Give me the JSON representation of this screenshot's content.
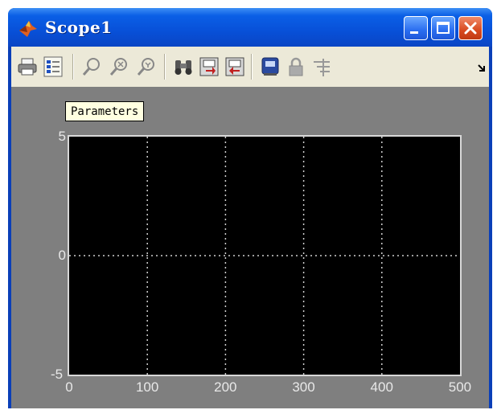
{
  "window": {
    "title": "Scope1"
  },
  "toolbar": {
    "icons": [
      "print-icon",
      "parameters-icon",
      "zoom-icon",
      "zoom-x-icon",
      "zoom-y-icon",
      "autoscale-binoculars-icon",
      "save-axes-icon",
      "restore-axes-icon",
      "floating-scope-icon",
      "lock-icon",
      "signal-selection-icon",
      "dock-arrow-icon"
    ]
  },
  "tooltip": {
    "text": "Parameters"
  },
  "chart_data": {
    "type": "line",
    "x_ticks": [
      "0",
      "100",
      "200",
      "300",
      "400",
      "500"
    ],
    "y_ticks": [
      "5",
      "0",
      "-5"
    ],
    "xlim": [
      0,
      500
    ],
    "ylim": [
      -5,
      5
    ],
    "grid": true,
    "series": []
  },
  "colors": {
    "plot_bg": "#000000",
    "window_bg": "#7f7f7f",
    "titlebar": "#0a5fe6",
    "grid": "#cfcfcf"
  }
}
